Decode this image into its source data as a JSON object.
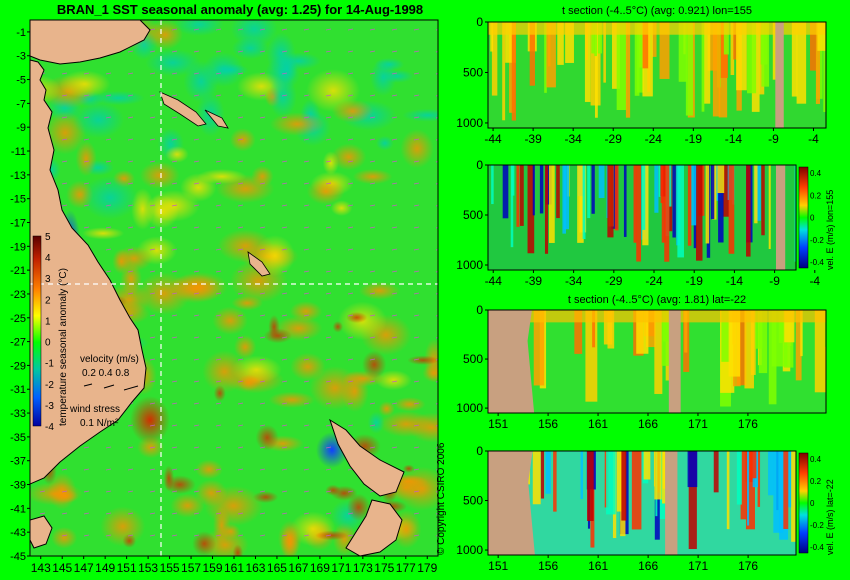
{
  "colors": {
    "background": "#00ff00",
    "land": "#e8b48c",
    "mask": "#c8a080",
    "vector": "#c060c0"
  },
  "main_title": "BRAN_1 SST seasonal anomaly (avg: 1.25) for 14-Aug-1998",
  "copyright": "© Copyright CSIRO 2006",
  "chart_data": [
    {
      "type": "heatmap",
      "name": "SST seasonal anomaly map",
      "x_ticks": [
        "143",
        "145",
        "147",
        "149",
        "151",
        "153",
        "155",
        "157",
        "159",
        "161",
        "163",
        "165",
        "167",
        "169",
        "171",
        "173",
        "175",
        "177",
        "179"
      ],
      "y_ticks": [
        "-1",
        "-3",
        "-5",
        "-7",
        "-9",
        "-11",
        "-13",
        "-15",
        "-17",
        "-19",
        "-21",
        "-23",
        "-25",
        "-27",
        "-29",
        "-31",
        "-33",
        "-35",
        "-37",
        "-39",
        "-41",
        "-43",
        "-45"
      ],
      "xlim": [
        142,
        180
      ],
      "ylim": [
        -45,
        0
      ],
      "section_lines": {
        "lon": 155,
        "lat": -22
      },
      "colorbar": {
        "label": "temperature seasonal anomaly (°C)",
        "ticks": [
          "5",
          "4",
          "3",
          "2",
          "1",
          "0",
          "-1",
          "-2",
          "-3",
          "-4"
        ]
      },
      "legend": {
        "velocity_label": "velocity (m/s)",
        "velocity_values": "0.2 0.4 0.8",
        "wind_label": "wind stress",
        "wind_value": "0.1 N/m²"
      }
    },
    {
      "type": "heatmap",
      "name": "t section lon",
      "title": "t section (-4..5°C) (avg: 0.921) lon=155",
      "x_ticks": [
        "-44",
        "-39",
        "-34",
        "-29",
        "-24",
        "-19",
        "-14",
        "-9",
        "-4"
      ],
      "y_ticks": [
        "0",
        "500",
        "1000"
      ]
    },
    {
      "type": "heatmap",
      "name": "vel E section lon",
      "x_ticks": [
        "-44",
        "-39",
        "-34",
        "-29",
        "-24",
        "-19",
        "-14",
        "-9",
        "-4"
      ],
      "y_ticks": [
        "0",
        "500",
        "1000"
      ],
      "colorbar": {
        "label": "vel. E (m/s) lon=155",
        "ticks": [
          "0.4",
          "0.2",
          "0",
          "-0.2",
          "-0.4"
        ]
      }
    },
    {
      "type": "heatmap",
      "name": "t section lat",
      "title": "t section (-4..5°C) (avg: 1.81) lat=-22",
      "x_ticks": [
        "151",
        "156",
        "161",
        "166",
        "171",
        "176"
      ],
      "y_ticks": [
        "0",
        "500",
        "1000"
      ]
    },
    {
      "type": "heatmap",
      "name": "vel E section lat",
      "x_ticks": [
        "151",
        "156",
        "161",
        "166",
        "171",
        "176"
      ],
      "y_ticks": [
        "0",
        "500",
        "1000"
      ],
      "colorbar": {
        "label": "vel. E (m/s) lat=-22",
        "ticks": [
          "0.4",
          "0.2",
          "0",
          "-0.2",
          "-0.4"
        ]
      }
    }
  ]
}
